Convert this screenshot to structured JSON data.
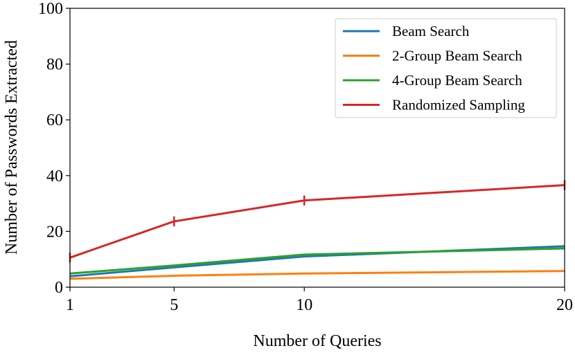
{
  "chart_data": {
    "type": "line",
    "title": "",
    "xlabel": "Number of Queries",
    "ylabel": "Number of Passwords Extracted",
    "x": [
      1,
      5,
      10,
      20
    ],
    "xticks": [
      "1",
      "5",
      "10",
      "20"
    ],
    "yticks": [
      "0",
      "20",
      "40",
      "60",
      "80",
      "100"
    ],
    "xlim": [
      1,
      20
    ],
    "ylim": [
      0,
      100
    ],
    "grid": false,
    "legend_position": "top-right",
    "series": [
      {
        "name": "Beam Search",
        "color": "#1f77b4",
        "values": [
          3.9,
          7.1,
          11,
          14.7
        ]
      },
      {
        "name": "2-Group Beam Search",
        "color": "#ff7f0e",
        "values": [
          3,
          4.1,
          4.9,
          5.8
        ]
      },
      {
        "name": "4-Group Beam Search",
        "color": "#2ca02c",
        "values": [
          4.9,
          7.8,
          11.7,
          13.9
        ]
      },
      {
        "name": "Randomized Sampling",
        "color": "#d62728",
        "values": [
          10.6,
          23.6,
          31.1,
          36.6
        ],
        "error": [
          1.8,
          1.8,
          1.8,
          1.8
        ]
      }
    ]
  }
}
